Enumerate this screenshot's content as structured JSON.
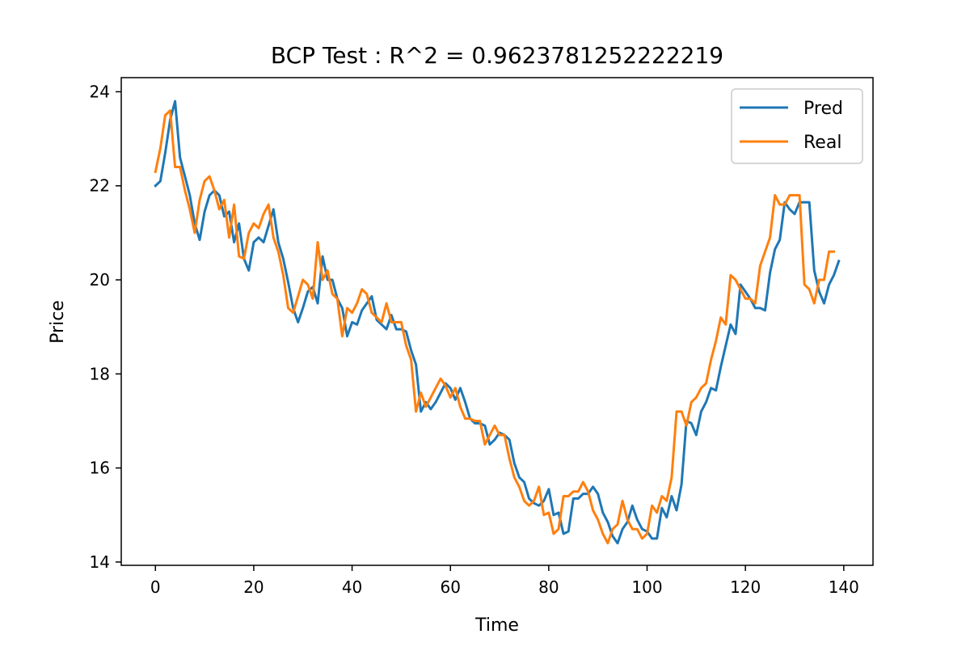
{
  "chart_data": {
    "type": "line",
    "title": "BCP Test : R^2 = 0.9623781252222219",
    "xlabel": "Time",
    "ylabel": "Price",
    "xlim": [
      -6.95,
      145.95
    ],
    "ylim": [
      13.93,
      24.3
    ],
    "xticks": [
      0,
      20,
      40,
      60,
      80,
      100,
      120,
      140
    ],
    "yticks": [
      14,
      16,
      18,
      20,
      22,
      24
    ],
    "grid": false,
    "legend": "top-right",
    "series": [
      {
        "name": "Pred",
        "color": "#1f77b4",
        "values": [
          22.0,
          22.1,
          22.7,
          23.4,
          23.8,
          22.6,
          22.2,
          21.8,
          21.2,
          20.85,
          21.45,
          21.8,
          21.9,
          21.8,
          21.35,
          21.45,
          20.8,
          21.2,
          20.45,
          20.2,
          20.8,
          20.9,
          20.8,
          21.15,
          21.5,
          20.8,
          20.45,
          19.95,
          19.4,
          19.1,
          19.4,
          19.75,
          19.85,
          19.5,
          20.5,
          20.0,
          20.0,
          19.6,
          19.4,
          18.8,
          19.1,
          19.05,
          19.35,
          19.5,
          19.65,
          19.15,
          19.05,
          18.95,
          19.25,
          18.95,
          18.95,
          18.9,
          18.5,
          18.2,
          17.2,
          17.4,
          17.25,
          17.4,
          17.6,
          17.8,
          17.7,
          17.45,
          17.7,
          17.4,
          17.05,
          16.95,
          16.95,
          16.9,
          16.5,
          16.6,
          16.75,
          16.7,
          16.6,
          16.1,
          15.8,
          15.7,
          15.35,
          15.25,
          15.2,
          15.3,
          15.55,
          15.0,
          15.05,
          14.6,
          14.65,
          15.35,
          15.35,
          15.45,
          15.45,
          15.6,
          15.45,
          15.05,
          14.85,
          14.55,
          14.4,
          14.7,
          14.85,
          15.2,
          14.9,
          14.7,
          14.65,
          14.5,
          14.5,
          15.15,
          14.95,
          15.4,
          15.1,
          15.65,
          17.0,
          16.95,
          16.7,
          17.2,
          17.4,
          17.7,
          17.65,
          18.15,
          18.6,
          19.05,
          18.85,
          19.9,
          19.75,
          19.6,
          19.4,
          19.4,
          19.35,
          20.15,
          20.65,
          20.85,
          21.65,
          21.5,
          21.4,
          21.65,
          21.65,
          21.65,
          20.2,
          19.75,
          19.5,
          19.9,
          20.1,
          20.4
        ]
      },
      {
        "name": "Real",
        "color": "#ff7f0e",
        "values": [
          22.3,
          22.8,
          23.5,
          23.6,
          22.4,
          22.4,
          21.9,
          21.5,
          21.0,
          21.7,
          22.1,
          22.2,
          21.9,
          21.5,
          21.7,
          20.9,
          21.6,
          20.5,
          20.45,
          21.0,
          21.2,
          21.1,
          21.4,
          21.6,
          20.9,
          20.6,
          20.1,
          19.4,
          19.3,
          19.65,
          20.0,
          19.9,
          19.6,
          20.8,
          20.0,
          20.2,
          19.7,
          19.6,
          18.8,
          19.4,
          19.3,
          19.5,
          19.8,
          19.7,
          19.3,
          19.2,
          19.1,
          19.5,
          19.1,
          19.1,
          19.1,
          18.6,
          18.3,
          17.2,
          17.6,
          17.3,
          17.5,
          17.7,
          17.9,
          17.75,
          17.5,
          17.7,
          17.3,
          17.05,
          17.05,
          17.0,
          17.0,
          16.5,
          16.7,
          16.9,
          16.7,
          16.7,
          16.2,
          15.8,
          15.6,
          15.3,
          15.2,
          15.3,
          15.6,
          15.0,
          15.05,
          14.6,
          14.7,
          15.4,
          15.4,
          15.5,
          15.5,
          15.7,
          15.5,
          15.1,
          14.9,
          14.6,
          14.4,
          14.7,
          14.8,
          15.3,
          14.9,
          14.7,
          14.7,
          14.5,
          14.6,
          15.2,
          15.05,
          15.4,
          15.3,
          15.8,
          17.2,
          17.2,
          16.9,
          17.4,
          17.5,
          17.7,
          17.8,
          18.3,
          18.7,
          19.2,
          19.05,
          20.1,
          20.0,
          19.8,
          19.6,
          19.6,
          19.5,
          20.3,
          20.6,
          20.9,
          21.8,
          21.6,
          21.6,
          21.8,
          21.8,
          21.8,
          19.9,
          19.8,
          19.5,
          20.0,
          20.0,
          20.6,
          20.6
        ]
      }
    ]
  }
}
